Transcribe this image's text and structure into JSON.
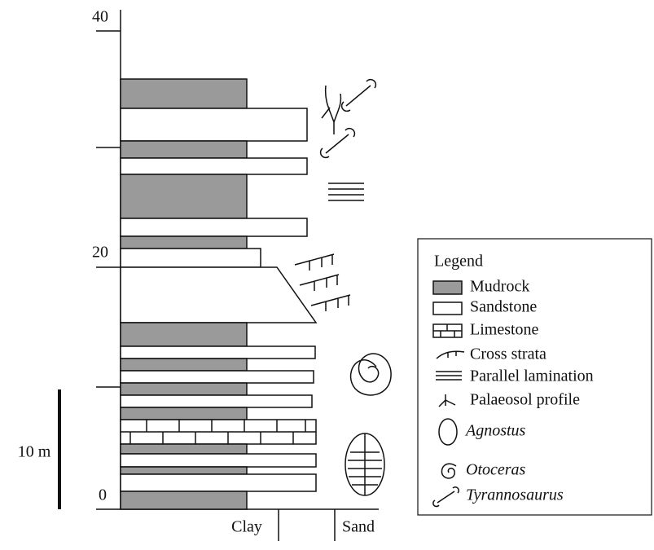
{
  "axis": {
    "tick_labels": [
      "40",
      "20",
      "0"
    ]
  },
  "scale_bar": "10 m",
  "x_labels": [
    "Clay",
    "Sand"
  ],
  "legend": {
    "title": "Legend",
    "items": [
      "Mudrock",
      "Sandstone",
      "Limestone",
      "Cross strata",
      "Parallel lamination",
      "Palaeosol profile",
      "Agnostus",
      "Otoceras",
      "Tyrannosaurus"
    ]
  }
}
